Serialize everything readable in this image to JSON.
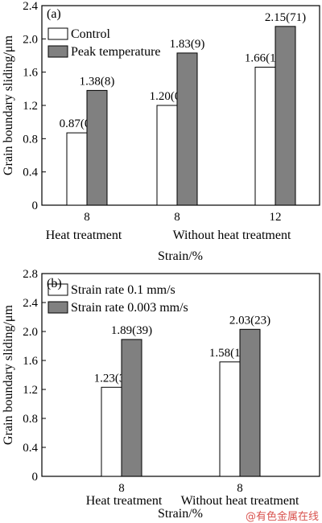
{
  "colors": {
    "series_a": "#ffffff",
    "series_b": "#808080",
    "axis": "#000000",
    "watermark": "#d9534f"
  },
  "watermark": "@有色金属在线",
  "chart_data": [
    {
      "type": "bar",
      "panel_label": "(a)",
      "ylabel": "Grain boundary sliding/μm",
      "xlabel": "Strain/%",
      "ylim": [
        0,
        2.4
      ],
      "yticks": [
        "0",
        "0.4",
        "0.8",
        "1.2",
        "1.6",
        "2.0",
        "2.4"
      ],
      "categories": [
        "8",
        "8",
        "12"
      ],
      "category_sublabels": [
        "Heat treatment",
        "Without heat treatment"
      ],
      "legend_position": "top-left",
      "series": [
        {
          "name": "Control",
          "values": [
            0.87,
            1.2,
            1.66
          ],
          "labels": [
            "0.87(0)",
            "1.20(0)",
            "1.66(17)"
          ]
        },
        {
          "name": "Peak temperature",
          "values": [
            1.38,
            1.83,
            2.15
          ],
          "labels": [
            "1.38(8)",
            "1.83(9)",
            "2.15(71)"
          ]
        }
      ]
    },
    {
      "type": "bar",
      "panel_label": "(b)",
      "ylabel": "Grain boundary sliding/μm",
      "xlabel": "Strain/%",
      "ylim": [
        0,
        2.8
      ],
      "yticks": [
        "0",
        "0.4",
        "0.8",
        "1.2",
        "1.6",
        "2.0",
        "2.4",
        "2.8"
      ],
      "categories": [
        "8",
        "8"
      ],
      "category_sublabels": [
        "Heat treatment",
        "Without heat treatment"
      ],
      "legend_position": "top-left",
      "series": [
        {
          "name": "Strain rate 0.1 mm/s",
          "values": [
            1.23,
            1.58
          ],
          "labels": [
            "1.23(3)",
            "1.58(10)"
          ]
        },
        {
          "name": "Strain rate 0.003 mm/s",
          "values": [
            1.89,
            2.03
          ],
          "labels": [
            "1.89(39)",
            "2.03(23)"
          ]
        }
      ]
    }
  ]
}
